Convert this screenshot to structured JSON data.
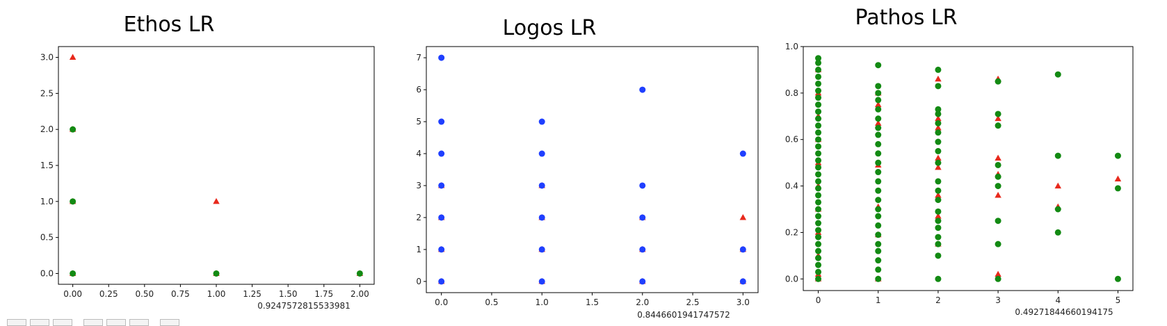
{
  "colors": {
    "actual": "#e8291c",
    "predicted_green": "#138a13",
    "predicted_blue": "#1f3fff",
    "axis": "#000000"
  },
  "marker_shapes": {
    "actual": "triangle",
    "predicted": "circle"
  },
  "chart_data": [
    {
      "type": "scatter",
      "title": "Ethos LR",
      "score_label": "0.9247572815533981",
      "xlim": [
        -0.1,
        2.1
      ],
      "ylim": [
        -0.15,
        3.15
      ],
      "xticks": [
        0.0,
        0.25,
        0.5,
        0.75,
        1.0,
        1.25,
        1.5,
        1.75,
        2.0
      ],
      "xtick_labels": [
        "0.00",
        "0.25",
        "0.50",
        "0.75",
        "1.00",
        "1.25",
        "1.50",
        "1.75",
        "2.00"
      ],
      "yticks": [
        0.0,
        0.5,
        1.0,
        1.5,
        2.0,
        2.5,
        3.0
      ],
      "ytick_labels": [
        "0.0",
        "0.5",
        "1.0",
        "1.5",
        "2.0",
        "2.5",
        "3.0"
      ],
      "series": [
        {
          "marker": "triangle",
          "color": "#e8291c",
          "points": [
            [
              0,
              3
            ],
            [
              0,
              2
            ],
            [
              0,
              1
            ],
            [
              0,
              0
            ],
            [
              1,
              1
            ],
            [
              1,
              0
            ],
            [
              2,
              0
            ]
          ]
        },
        {
          "marker": "circle",
          "color": "#138a13",
          "points": [
            [
              0,
              2
            ],
            [
              0,
              1
            ],
            [
              0,
              0
            ],
            [
              1,
              0
            ],
            [
              2,
              0
            ]
          ]
        }
      ]
    },
    {
      "type": "scatter",
      "title": "Logos LR",
      "score_label": "0.8446601941747572",
      "xlim": [
        -0.15,
        3.15
      ],
      "ylim": [
        -0.35,
        7.35
      ],
      "xticks": [
        0.0,
        0.5,
        1.0,
        1.5,
        2.0,
        2.5,
        3.0
      ],
      "xtick_labels": [
        "0.0",
        "0.5",
        "1.0",
        "1.5",
        "2.0",
        "2.5",
        "3.0"
      ],
      "yticks": [
        0,
        1,
        2,
        3,
        4,
        5,
        6,
        7
      ],
      "ytick_labels": [
        "0",
        "1",
        "2",
        "3",
        "4",
        "5",
        "6",
        "7"
      ],
      "series": [
        {
          "marker": "triangle",
          "color": "#e8291c",
          "points": [
            [
              0,
              0
            ],
            [
              0,
              1
            ],
            [
              0,
              2
            ],
            [
              0,
              3
            ],
            [
              1,
              0
            ],
            [
              1,
              1
            ],
            [
              1,
              2
            ],
            [
              1,
              3
            ],
            [
              2,
              0
            ],
            [
              2,
              1
            ],
            [
              2,
              2
            ],
            [
              3,
              0
            ],
            [
              3,
              1
            ],
            [
              3,
              2
            ]
          ]
        },
        {
          "marker": "circle",
          "color": "#1f3fff",
          "points": [
            [
              0,
              0
            ],
            [
              0,
              1
            ],
            [
              0,
              2
            ],
            [
              0,
              3
            ],
            [
              0,
              4
            ],
            [
              0,
              5
            ],
            [
              0,
              7
            ],
            [
              1,
              0
            ],
            [
              1,
              1
            ],
            [
              1,
              2
            ],
            [
              1,
              3
            ],
            [
              1,
              4
            ],
            [
              1,
              5
            ],
            [
              2,
              0
            ],
            [
              2,
              1
            ],
            [
              2,
              2
            ],
            [
              2,
              3
            ],
            [
              2,
              6
            ],
            [
              3,
              0
            ],
            [
              3,
              1
            ],
            [
              3,
              4
            ]
          ]
        }
      ]
    },
    {
      "type": "scatter",
      "title": "Pathos LR",
      "score_label": "0.49271844660194175",
      "xlim": [
        -0.25,
        5.25
      ],
      "ylim": [
        -0.05,
        1.0
      ],
      "xticks": [
        0,
        1,
        2,
        3,
        4,
        5
      ],
      "xtick_labels": [
        "0",
        "1",
        "2",
        "3",
        "4",
        "5"
      ],
      "yticks": [
        0.0,
        0.2,
        0.4,
        0.6,
        0.8,
        1.0
      ],
      "ytick_labels": [
        "0.0",
        "0.2",
        "0.4",
        "0.6",
        "0.8",
        "1.0"
      ],
      "series": [
        {
          "marker": "triangle",
          "color": "#e8291c",
          "points": [
            [
              0,
              0.0
            ],
            [
              0,
              0.02
            ],
            [
              0,
              0.1
            ],
            [
              0,
              0.2
            ],
            [
              0,
              0.3
            ],
            [
              0,
              0.4
            ],
            [
              0,
              0.5
            ],
            [
              0,
              0.6
            ],
            [
              0,
              0.7
            ],
            [
              0,
              0.8
            ],
            [
              0,
              0.9
            ],
            [
              1,
              0.0
            ],
            [
              1,
              0.19
            ],
            [
              1,
              0.31
            ],
            [
              1,
              0.49
            ],
            [
              1,
              0.67
            ],
            [
              1,
              0.75
            ],
            [
              1,
              0.8
            ],
            [
              2,
              0.15
            ],
            [
              2,
              0.27
            ],
            [
              2,
              0.36
            ],
            [
              2,
              0.48
            ],
            [
              2,
              0.52
            ],
            [
              2,
              0.65
            ],
            [
              2,
              0.69
            ],
            [
              2,
              0.86
            ],
            [
              3,
              0.02
            ],
            [
              3,
              0.36
            ],
            [
              3,
              0.45
            ],
            [
              3,
              0.52
            ],
            [
              3,
              0.69
            ],
            [
              3,
              0.86
            ],
            [
              4,
              0.31
            ],
            [
              4,
              0.4
            ],
            [
              5,
              0.43
            ]
          ]
        },
        {
          "marker": "circle",
          "color": "#138a13",
          "points": [
            [
              0,
              0.0
            ],
            [
              0,
              0.03
            ],
            [
              0,
              0.06
            ],
            [
              0,
              0.09
            ],
            [
              0,
              0.12
            ],
            [
              0,
              0.15
            ],
            [
              0,
              0.18
            ],
            [
              0,
              0.21
            ],
            [
              0,
              0.24
            ],
            [
              0,
              0.27
            ],
            [
              0,
              0.3
            ],
            [
              0,
              0.33
            ],
            [
              0,
              0.36
            ],
            [
              0,
              0.39
            ],
            [
              0,
              0.42
            ],
            [
              0,
              0.45
            ],
            [
              0,
              0.48
            ],
            [
              0,
              0.51
            ],
            [
              0,
              0.54
            ],
            [
              0,
              0.57
            ],
            [
              0,
              0.6
            ],
            [
              0,
              0.63
            ],
            [
              0,
              0.66
            ],
            [
              0,
              0.69
            ],
            [
              0,
              0.72
            ],
            [
              0,
              0.75
            ],
            [
              0,
              0.78
            ],
            [
              0,
              0.81
            ],
            [
              0,
              0.84
            ],
            [
              0,
              0.87
            ],
            [
              0,
              0.9
            ],
            [
              0,
              0.93
            ],
            [
              0,
              0.95
            ],
            [
              1,
              0.0
            ],
            [
              1,
              0.04
            ],
            [
              1,
              0.08
            ],
            [
              1,
              0.12
            ],
            [
              1,
              0.15
            ],
            [
              1,
              0.19
            ],
            [
              1,
              0.23
            ],
            [
              1,
              0.27
            ],
            [
              1,
              0.3
            ],
            [
              1,
              0.34
            ],
            [
              1,
              0.38
            ],
            [
              1,
              0.42
            ],
            [
              1,
              0.46
            ],
            [
              1,
              0.5
            ],
            [
              1,
              0.54
            ],
            [
              1,
              0.58
            ],
            [
              1,
              0.62
            ],
            [
              1,
              0.65
            ],
            [
              1,
              0.69
            ],
            [
              1,
              0.73
            ],
            [
              1,
              0.77
            ],
            [
              1,
              0.8
            ],
            [
              1,
              0.83
            ],
            [
              1,
              0.92
            ],
            [
              2,
              0.0
            ],
            [
              2,
              0.1
            ],
            [
              2,
              0.15
            ],
            [
              2,
              0.18
            ],
            [
              2,
              0.22
            ],
            [
              2,
              0.25
            ],
            [
              2,
              0.29
            ],
            [
              2,
              0.34
            ],
            [
              2,
              0.38
            ],
            [
              2,
              0.42
            ],
            [
              2,
              0.5
            ],
            [
              2,
              0.55
            ],
            [
              2,
              0.59
            ],
            [
              2,
              0.63
            ],
            [
              2,
              0.67
            ],
            [
              2,
              0.71
            ],
            [
              2,
              0.73
            ],
            [
              2,
              0.83
            ],
            [
              2,
              0.9
            ],
            [
              3,
              0.0
            ],
            [
              3,
              0.15
            ],
            [
              3,
              0.25
            ],
            [
              3,
              0.4
            ],
            [
              3,
              0.44
            ],
            [
              3,
              0.49
            ],
            [
              3,
              0.66
            ],
            [
              3,
              0.71
            ],
            [
              3,
              0.85
            ],
            [
              4,
              0.2
            ],
            [
              4,
              0.3
            ],
            [
              4,
              0.53
            ],
            [
              4,
              0.88
            ],
            [
              5,
              0.0
            ],
            [
              5,
              0.39
            ],
            [
              5,
              0.53
            ]
          ]
        }
      ]
    }
  ]
}
